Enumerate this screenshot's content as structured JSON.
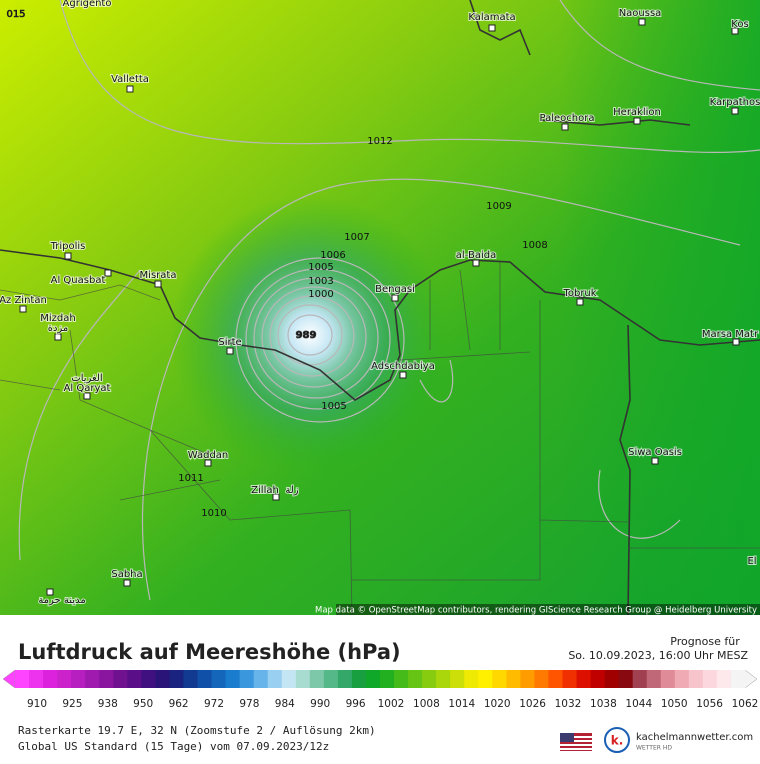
{
  "map": {
    "cities": [
      "Agrigento",
      "Kalamata",
      "Naoussa",
      "Kos",
      "Valletta",
      "Paleochora",
      "Heraklion",
      "Karpathos",
      "Tripolis",
      "Al Quasbat",
      "Misrata",
      "Az Zintan",
      "Mizdah",
      "مزدة",
      "الغريات",
      "Al Qaryat",
      "Sirte",
      "Bengasi",
      "al-Baida",
      "Tobruk",
      "Marsa Matr",
      "Adschdabiya",
      "Waddan",
      "Zillah",
      "زلة",
      "Siwa Oasis",
      "Sabha",
      "مدينة حرمة",
      "El"
    ],
    "isobar_labels": [
      "015",
      "1012",
      "1009",
      "1007",
      "1008",
      "1006",
      "1005",
      "1003",
      "1000",
      "989",
      "1005",
      "1011",
      "1010"
    ],
    "attribution": "Map data © OpenStreetMap contributors, rendering GIScience Research Group @ Heidelberg University"
  },
  "panel": {
    "title": "Luftdruck auf Meereshöhe (hPa)",
    "forecast_label": "Prognose für",
    "forecast_time": "So. 10.09.2023, 16:00 Uhr MESZ",
    "colorbar": {
      "ticks": [
        "910",
        "925",
        "938",
        "950",
        "962",
        "972",
        "978",
        "984",
        "990",
        "996",
        "1002",
        "1008",
        "1014",
        "1020",
        "1026",
        "1032",
        "1038",
        "1044",
        "1050",
        "1056",
        "1062"
      ],
      "colors": [
        "#ff44ff",
        "#ee33ee",
        "#dd22dd",
        "#cc22cc",
        "#b81fc0",
        "#a01ab0",
        "#8a16a0",
        "#701290",
        "#5a0e88",
        "#401080",
        "#2a1478",
        "#1a2480",
        "#123a90",
        "#1050a8",
        "#1466bb",
        "#1a7ccc",
        "#3a96dd",
        "#66b4ea",
        "#99d0f2",
        "#c4e6f4",
        "#a8dcd0",
        "#7cc8a8",
        "#55b888",
        "#33a868",
        "#18a040",
        "#10a828",
        "#22b020",
        "#44bb18",
        "#66c414",
        "#88cc10",
        "#aad60c",
        "#ccdf08",
        "#eeea04",
        "#fff000",
        "#ffd800",
        "#ffbb00",
        "#ff9c00",
        "#ff7a00",
        "#ff5500",
        "#f03000",
        "#dd1000",
        "#c00000",
        "#a00000",
        "#880a10",
        "#a04050",
        "#c06878",
        "#e08c98",
        "#f0aab4",
        "#f8c4cc",
        "#fcd8de",
        "#fde8ec",
        "#f4f4f4"
      ]
    },
    "info_line_1": "Rasterkarte 19.7 E, 32 N (Zoomstufe 2 / Auflösung 2km)",
    "info_line_2": "Global US Standard (15 Tage) vom 07.09.2023/12z",
    "logo_text": "kachelmannwetter.com",
    "logo_sub": "WETTER HD",
    "logo_letter": "k."
  }
}
